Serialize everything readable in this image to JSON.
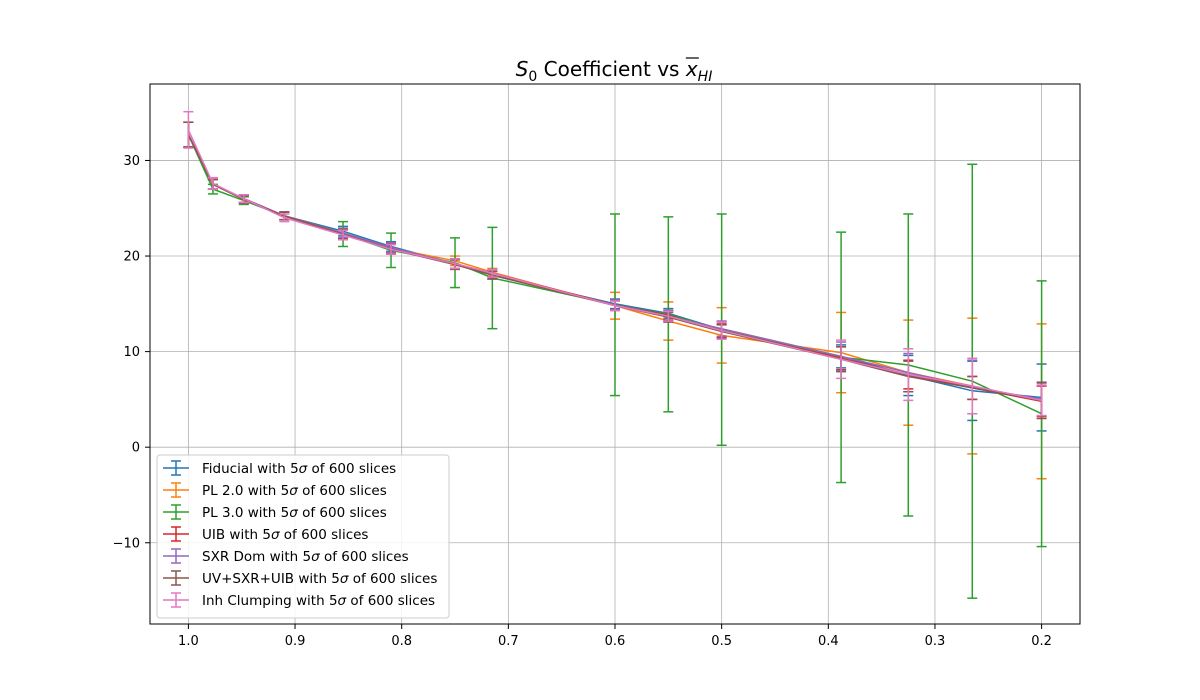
{
  "chart_data": {
    "type": "line",
    "title": "S0 Coefficient vs x̄HI",
    "title_parts": {
      "s_main": "S",
      "s_sub": "0",
      "mid": " Coefficient vs ",
      "x_main": "x",
      "x_sub": "HI"
    },
    "xlabel": "",
    "ylabel": "",
    "x_inverted": true,
    "xlim": [
      1.036,
      0.164
    ],
    "ylim": [
      -18.5,
      38.0
    ],
    "x_ticks": [
      1.0,
      0.9,
      0.8,
      0.7,
      0.6,
      0.5,
      0.4,
      0.3,
      0.2
    ],
    "x_tick_labels": [
      "1.0",
      "0.9",
      "0.8",
      "0.7",
      "0.6",
      "0.5",
      "0.4",
      "0.3",
      "0.2"
    ],
    "y_ticks": [
      -10,
      0,
      10,
      20,
      30
    ],
    "y_tick_labels": [
      "−10",
      "0",
      "10",
      "20",
      "30"
    ],
    "grid": true,
    "legend_position": "lower-left",
    "series": [
      {
        "name": "Fiducial with 5σ of 600 slices",
        "legend_prefix": "Fiducial with 5",
        "color": "#1f77b4",
        "x": [
          1.0,
          0.977,
          0.948,
          0.91,
          0.855,
          0.81,
          0.75,
          0.715,
          0.6,
          0.55,
          0.5,
          0.388,
          0.325,
          0.265,
          0.2
        ],
        "y": [
          32.7,
          27.5,
          26.0,
          24.2,
          22.6,
          21.0,
          19.2,
          18.0,
          15.0,
          14.0,
          12.3,
          9.5,
          7.5,
          5.9,
          5.2
        ],
        "err": [
          1.3,
          0.5,
          0.4,
          0.4,
          0.5,
          0.5,
          0.5,
          0.4,
          0.5,
          0.5,
          0.8,
          1.2,
          2.1,
          3.1,
          3.5
        ]
      },
      {
        "name": "PL 2.0 with 5σ of 600 slices",
        "legend_prefix": "PL 2.0 with 5",
        "color": "#ff7f0e",
        "x": [
          1.0,
          0.977,
          0.948,
          0.91,
          0.855,
          0.81,
          0.75,
          0.715,
          0.6,
          0.55,
          0.5,
          0.388,
          0.325,
          0.265,
          0.2
        ],
        "y": [
          32.7,
          27.5,
          26.0,
          24.2,
          22.4,
          20.8,
          19.5,
          18.3,
          14.8,
          13.2,
          11.7,
          9.9,
          7.8,
          6.4,
          4.8
        ],
        "err": [
          1.3,
          0.5,
          0.4,
          0.4,
          0.5,
          0.5,
          0.5,
          0.4,
          1.4,
          2.0,
          2.9,
          4.2,
          5.5,
          7.1,
          8.1
        ]
      },
      {
        "name": "PL 3.0 with 5σ of 600 slices",
        "legend_prefix": "PL 3.0 with 5",
        "color": "#2ca02c",
        "x": [
          1.0,
          0.977,
          0.948,
          0.91,
          0.855,
          0.81,
          0.75,
          0.715,
          0.6,
          0.55,
          0.5,
          0.388,
          0.325,
          0.265,
          0.2
        ],
        "y": [
          32.7,
          27.0,
          25.8,
          24.2,
          22.3,
          20.6,
          19.3,
          17.7,
          14.9,
          13.9,
          12.3,
          9.4,
          8.6,
          6.9,
          3.5
        ],
        "err": [
          1.3,
          0.5,
          0.4,
          0.4,
          1.3,
          1.8,
          2.6,
          5.3,
          9.5,
          10.2,
          12.1,
          13.1,
          15.8,
          22.7,
          13.9
        ]
      },
      {
        "name": "UIB with 5σ of 600 slices",
        "legend_prefix": "UIB with 5",
        "color": "#d62728",
        "x": [
          1.0,
          0.977,
          0.948,
          0.91,
          0.855,
          0.81,
          0.75,
          0.715,
          0.6,
          0.55,
          0.5,
          0.388,
          0.325,
          0.265,
          0.2
        ],
        "y": [
          32.7,
          27.5,
          26.0,
          24.2,
          22.3,
          20.8,
          19.2,
          18.2,
          14.9,
          13.8,
          12.2,
          9.3,
          7.6,
          6.2,
          4.8
        ],
        "err": [
          1.3,
          0.5,
          0.4,
          0.4,
          0.5,
          0.5,
          0.5,
          0.4,
          0.5,
          0.5,
          0.7,
          1.2,
          1.5,
          1.2,
          1.6
        ]
      },
      {
        "name": "SXR Dom with 5σ of 600 slices",
        "legend_prefix": "SXR Dom with 5",
        "color": "#9467bd",
        "x": [
          1.0,
          0.977,
          0.948,
          0.91,
          0.855,
          0.81,
          0.75,
          0.715,
          0.6,
          0.55,
          0.5,
          0.388,
          0.325,
          0.265,
          0.2
        ],
        "y": [
          32.7,
          27.5,
          26.0,
          24.2,
          22.4,
          20.9,
          19.2,
          18.0,
          14.9,
          13.7,
          12.4,
          9.5,
          7.8,
          6.3,
          5.0
        ],
        "err": [
          1.3,
          0.5,
          0.4,
          0.4,
          0.5,
          0.5,
          0.5,
          0.4,
          0.5,
          0.6,
          0.8,
          1.5,
          2.0,
          2.8,
          1.7
        ]
      },
      {
        "name": "UV+SXR+UIB with 5σ of 600 slices",
        "legend_prefix": "UV+SXR+UIB with 5",
        "color": "#8c564b",
        "x": [
          1.0,
          0.977,
          0.948,
          0.91,
          0.855,
          0.81,
          0.75,
          0.715,
          0.6,
          0.55,
          0.5,
          0.388,
          0.325,
          0.265,
          0.2
        ],
        "y": [
          32.7,
          27.5,
          25.9,
          24.2,
          22.3,
          20.7,
          19.1,
          18.0,
          14.8,
          13.6,
          12.1,
          9.2,
          7.4,
          6.2,
          4.9
        ],
        "err": [
          1.3,
          0.5,
          0.4,
          0.4,
          0.5,
          0.5,
          0.5,
          0.4,
          0.5,
          0.5,
          0.7,
          1.3,
          1.6,
          1.2,
          1.9
        ]
      },
      {
        "name": "Inh Clumping with 5σ of 600 slices",
        "legend_prefix": "Inh Clumping with 5",
        "color": "#e377c2",
        "x": [
          1.0,
          0.977,
          0.948,
          0.91,
          0.855,
          0.81,
          0.75,
          0.715,
          0.6,
          0.55,
          0.5,
          0.388,
          0.325,
          0.265,
          0.2
        ],
        "y": [
          33.2,
          27.6,
          26.0,
          24.0,
          22.2,
          20.7,
          19.2,
          18.2,
          14.8,
          13.7,
          12.2,
          9.2,
          7.6,
          6.4,
          4.9
        ],
        "err": [
          1.9,
          0.6,
          0.4,
          0.4,
          0.5,
          0.5,
          0.5,
          0.4,
          0.5,
          0.5,
          0.9,
          2.0,
          2.7,
          2.9,
          1.6
        ]
      }
    ],
    "legend_suffix": " of 600 slices",
    "legend_sigma": "σ"
  }
}
